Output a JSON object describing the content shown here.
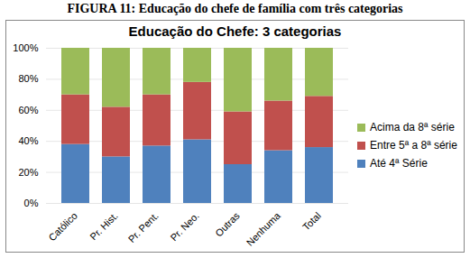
{
  "chart_data": {
    "type": "bar",
    "title": "FIGURA 11: Educação do chefe de família com três categorias",
    "subtitle": "Educação do Chefe: 3 categorias",
    "categories": [
      "Católico",
      "Pr. Hist.",
      "Pr. Pent.",
      "Pr. Neo.",
      "Outras",
      "Nenhuma",
      "Total"
    ],
    "series": [
      {
        "name": "Até 4ª Série",
        "color": "#4f81bd",
        "values": [
          38,
          30,
          37,
          41,
          25,
          34,
          36
        ]
      },
      {
        "name": "Entre 5ª a 8ª série",
        "color": "#c0504d",
        "values": [
          32,
          32,
          33,
          37,
          34,
          32,
          33
        ]
      },
      {
        "name": "Acima da 8ª série",
        "color": "#9bbb59",
        "values": [
          30,
          38,
          30,
          22,
          41,
          34,
          31
        ]
      }
    ],
    "ylim": [
      0,
      100
    ],
    "yticks": [
      {
        "value": 0,
        "label": "0%"
      },
      {
        "value": 20,
        "label": "20%"
      },
      {
        "value": 40,
        "label": "40%"
      },
      {
        "value": 60,
        "label": "60%"
      },
      {
        "value": 80,
        "label": "80%"
      },
      {
        "value": 100,
        "label": "100%"
      }
    ],
    "grid": true,
    "stacked": true,
    "legend": "right"
  }
}
